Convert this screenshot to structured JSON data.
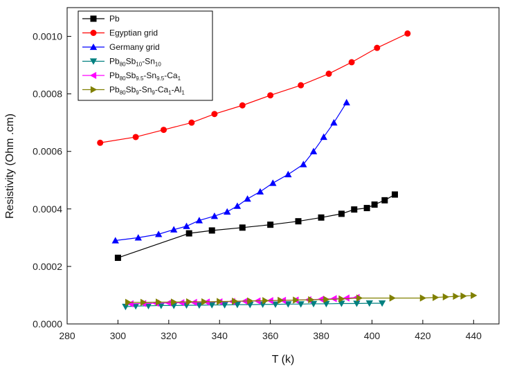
{
  "chart_data": {
    "type": "line",
    "xlabel": "T (k)",
    "ylabel": "Resistivity (Ohm .cm)",
    "xlim": [
      280,
      450
    ],
    "ylim": [
      0,
      0.0011
    ],
    "x_ticks": [
      280,
      300,
      320,
      340,
      360,
      380,
      400,
      420,
      440
    ],
    "y_ticks": [
      0,
      0.0002,
      0.0004,
      0.0006,
      0.0008,
      0.001
    ],
    "x_tick_labels": [
      "280",
      "300",
      "320",
      "340",
      "360",
      "380",
      "400",
      "420",
      "440"
    ],
    "y_tick_labels": [
      "0.0000",
      "0.0002",
      "0.0004",
      "0.0006",
      "0.0008",
      "0.0010"
    ],
    "grid": false,
    "legend_position": "top-left",
    "series": [
      {
        "name": "Pb",
        "label": {
          "base": "Pb",
          "subs": []
        },
        "color": "#000000",
        "marker": "square",
        "points": [
          [
            300,
            0.00023
          ],
          [
            328,
            0.000315
          ],
          [
            337,
            0.000325
          ],
          [
            349,
            0.000335
          ],
          [
            360,
            0.000345
          ],
          [
            371,
            0.000357
          ],
          [
            380,
            0.00037
          ],
          [
            388,
            0.000383
          ],
          [
            393,
            0.000398
          ],
          [
            398,
            0.000403
          ],
          [
            401,
            0.000415
          ],
          [
            405,
            0.00043
          ],
          [
            409,
            0.00045
          ]
        ]
      },
      {
        "name": "Egyptian grid",
        "label": {
          "base": "Egyptian grid",
          "subs": []
        },
        "color": "#ff0000",
        "marker": "circle",
        "points": [
          [
            293,
            0.00063
          ],
          [
            307,
            0.00065
          ],
          [
            318,
            0.000675
          ],
          [
            329,
            0.0007
          ],
          [
            338,
            0.00073
          ],
          [
            349,
            0.00076
          ],
          [
            360,
            0.000795
          ],
          [
            372,
            0.00083
          ],
          [
            383,
            0.00087
          ],
          [
            392,
            0.00091
          ],
          [
            402,
            0.00096
          ],
          [
            414,
            0.00101
          ]
        ]
      },
      {
        "name": "Germany grid",
        "label": {
          "base": "Germany grid",
          "subs": []
        },
        "color": "#0000ff",
        "marker": "triangle-up",
        "points": [
          [
            299,
            0.00029
          ],
          [
            308,
            0.0003
          ],
          [
            316,
            0.000312
          ],
          [
            322,
            0.000328
          ],
          [
            327,
            0.00034
          ],
          [
            332,
            0.00036
          ],
          [
            338,
            0.000375
          ],
          [
            343,
            0.00039
          ],
          [
            347,
            0.00041
          ],
          [
            351,
            0.000435
          ],
          [
            356,
            0.00046
          ],
          [
            361,
            0.00049
          ],
          [
            367,
            0.00052
          ],
          [
            373,
            0.000555
          ],
          [
            377,
            0.0006
          ],
          [
            381,
            0.00065
          ],
          [
            385,
            0.0007
          ],
          [
            390,
            0.00077
          ]
        ]
      },
      {
        "name": "Pb80Sb10-Sn10",
        "label": {
          "base": "Pb",
          "subs": [
            [
              "80",
              "Sb"
            ],
            [
              "10",
              "-Sn"
            ],
            [
              "10",
              ""
            ]
          ]
        },
        "color": "#008080",
        "marker": "triangle-down",
        "points": [
          [
            303,
            6e-05
          ],
          [
            307,
            6.2e-05
          ],
          [
            312,
            6.3e-05
          ],
          [
            317,
            6.4e-05
          ],
          [
            322,
            6.4e-05
          ],
          [
            327,
            6.5e-05
          ],
          [
            332,
            6.5e-05
          ],
          [
            337,
            6.6e-05
          ],
          [
            342,
            6.6e-05
          ],
          [
            347,
            6.7e-05
          ],
          [
            352,
            6.7e-05
          ],
          [
            357,
            6.8e-05
          ],
          [
            362,
            6.8e-05
          ],
          [
            367,
            6.9e-05
          ],
          [
            372,
            6.9e-05
          ],
          [
            377,
            7e-05
          ],
          [
            382,
            7e-05
          ],
          [
            388,
            7.1e-05
          ],
          [
            394,
            7.1e-05
          ],
          [
            399,
            7.2e-05
          ],
          [
            404,
            7.2e-05
          ]
        ]
      },
      {
        "name": "Pb80Sb9.5-Sn9.5-Ca1",
        "label": {
          "base": "Pb",
          "subs": [
            [
              "80",
              "Sb"
            ],
            [
              "9.5",
              "-Sn"
            ],
            [
              "9.5",
              "-Ca"
            ],
            [
              "1",
              ""
            ]
          ]
        },
        "color": "#ff00ff",
        "marker": "triangle-left",
        "points": [
          [
            305,
            7e-05
          ],
          [
            310,
            7.1e-05
          ],
          [
            315,
            7.2e-05
          ],
          [
            320,
            7.3e-05
          ],
          [
            325,
            7.4e-05
          ],
          [
            330,
            7.5e-05
          ],
          [
            335,
            7.6e-05
          ],
          [
            340,
            7.7e-05
          ],
          [
            345,
            7.8e-05
          ],
          [
            350,
            7.9e-05
          ],
          [
            355,
            8e-05
          ],
          [
            360,
            8.1e-05
          ],
          [
            365,
            8.2e-05
          ],
          [
            370,
            8.3e-05
          ],
          [
            375,
            8.4e-05
          ],
          [
            380,
            8.6e-05
          ],
          [
            385,
            8.8e-05
          ],
          [
            390,
            9e-05
          ],
          [
            394,
            9.2e-05
          ]
        ]
      },
      {
        "name": "Pb80Sb9-Sn9-Ca1-Al1",
        "label": {
          "base": "Pb",
          "subs": [
            [
              "80",
              "Sb"
            ],
            [
              "9",
              "-Sn"
            ],
            [
              "9",
              "-Ca"
            ],
            [
              "1",
              "-Al"
            ],
            [
              "1",
              ""
            ]
          ]
        },
        "color": "#808000",
        "marker": "triangle-right",
        "points": [
          [
            304,
            7.5e-05
          ],
          [
            310,
            7.5e-05
          ],
          [
            316,
            7.6e-05
          ],
          [
            322,
            7.6e-05
          ],
          [
            328,
            7.7e-05
          ],
          [
            334,
            7.7e-05
          ],
          [
            340,
            7.8e-05
          ],
          [
            346,
            7.9e-05
          ],
          [
            352,
            8e-05
          ],
          [
            358,
            8.1e-05
          ],
          [
            364,
            8.2e-05
          ],
          [
            370,
            8.3e-05
          ],
          [
            376,
            8.4e-05
          ],
          [
            382,
            8.5e-05
          ],
          [
            388,
            8.7e-05
          ],
          [
            395,
            9e-05
          ],
          [
            408,
            9e-05
          ],
          [
            420,
            9e-05
          ],
          [
            425,
            9.2e-05
          ],
          [
            429,
            9.4e-05
          ],
          [
            433,
            9.6e-05
          ],
          [
            436,
            9.7e-05
          ],
          [
            440,
            9.9e-05
          ]
        ]
      }
    ]
  }
}
